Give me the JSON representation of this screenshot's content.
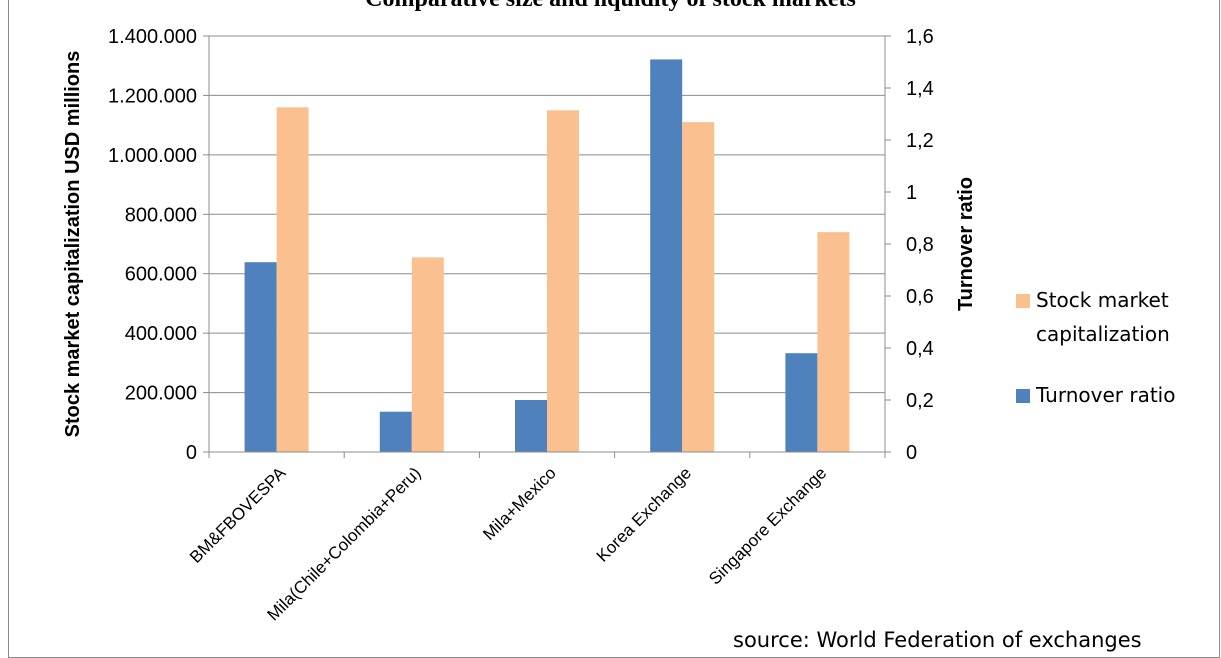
{
  "chart_data": {
    "type": "bar",
    "title": "Comparative size and liquidity of stock markets",
    "categories": [
      "BM&FBOVESPA",
      "Mila(Chile+Colombia+Peru)",
      "Mila+Mexico",
      "Korea Exchange",
      "Singapore Exchange"
    ],
    "series": [
      {
        "name": "Turnover ratio",
        "axis": "right",
        "color": "#4f81bd",
        "values": [
          0.73,
          0.155,
          0.2,
          1.51,
          0.38
        ]
      },
      {
        "name": "Stock market capitalization",
        "axis": "left",
        "color": "#fac090",
        "values": [
          1160000,
          655000,
          1150000,
          1110000,
          740000
        ]
      }
    ],
    "y_left": {
      "label": "Stock market capitalization USD millions",
      "range": [
        0,
        1400000
      ],
      "ticks": [
        "0",
        "200.000",
        "400.000",
        "600.000",
        "800.000",
        "1.000.000",
        "1.200.000",
        "1.400.000"
      ]
    },
    "y_right": {
      "label": "Turnover ratio",
      "range": [
        0,
        1.6
      ],
      "ticks": [
        "0",
        "0,2",
        "0,4",
        "0,6",
        "0,8",
        "1",
        "1,2",
        "1,4",
        "1,6"
      ]
    },
    "grid": true,
    "legend": [
      {
        "label_line1": "Stock market",
        "label_line2": "capitalization",
        "color": "#fac090"
      },
      {
        "label_line1": "Turnover ratio",
        "label_line2": "",
        "color": "#4f81bd"
      }
    ],
    "legend_position": "right"
  },
  "source_note": "source: World Federation of exchanges"
}
